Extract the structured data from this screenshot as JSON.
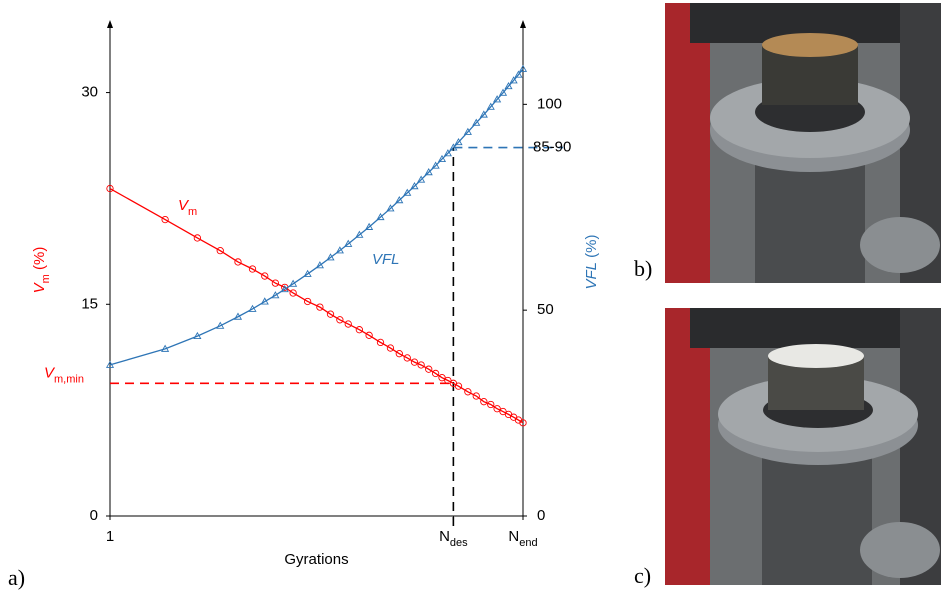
{
  "chart_data": {
    "type": "line",
    "xlabel": "Gyrations",
    "xscale": "log",
    "xlim": [
      1,
      180
    ],
    "xticks": [
      1,
      {
        "value": 75,
        "label": "N",
        "label_sub": "des"
      },
      {
        "value": 180,
        "label": "N",
        "label_sub": "end"
      }
    ],
    "ylim": [
      0,
      35
    ],
    "yticks": [
      0,
      15,
      30
    ],
    "y2lim": [
      0,
      120
    ],
    "y2ticks": [
      0,
      50,
      100
    ],
    "ylabel": {
      "main": "V",
      "sub": "m",
      "unit": " (%)",
      "color": "#ff0000"
    },
    "y2label": {
      "main": "VFL",
      "unit": " (%)",
      "color": "#2e75b6"
    },
    "x": [
      1,
      2,
      3,
      4,
      5,
      6,
      7,
      8,
      9,
      10,
      12,
      14,
      16,
      18,
      20,
      23,
      26,
      30,
      34,
      38,
      42,
      46,
      50,
      55,
      60,
      65,
      70,
      75,
      80,
      90,
      100,
      110,
      120,
      130,
      140,
      150,
      160,
      170,
      180
    ],
    "series": [
      {
        "name": "V",
        "name_sub": "m",
        "color": "#ff0000",
        "marker": "circle",
        "axis": "y",
        "values": [
          23.2,
          21.0,
          19.7,
          18.8,
          18.0,
          17.5,
          17.0,
          16.5,
          16.2,
          15.8,
          15.2,
          14.8,
          14.3,
          13.9,
          13.6,
          13.2,
          12.8,
          12.3,
          11.9,
          11.5,
          11.2,
          10.9,
          10.7,
          10.4,
          10.1,
          9.8,
          9.6,
          9.4,
          9.2,
          8.8,
          8.5,
          8.1,
          7.9,
          7.6,
          7.4,
          7.2,
          7.0,
          6.8,
          6.6
        ]
      },
      {
        "name": "VFL",
        "color": "#2e75b6",
        "marker": "triangle",
        "axis": "y2",
        "values": [
          36.7,
          40.6,
          43.7,
          46.2,
          48.4,
          50.3,
          52.1,
          53.6,
          55.1,
          56.4,
          58.8,
          60.9,
          62.8,
          64.5,
          66.1,
          68.3,
          70.2,
          72.6,
          74.7,
          76.7,
          78.5,
          80.1,
          81.7,
          83.5,
          85.1,
          86.7,
          88.1,
          89.5,
          90.8,
          93.3,
          95.5,
          97.5,
          99.4,
          101.2,
          102.8,
          104.4,
          105.8,
          107.2,
          108.6
        ]
      }
    ],
    "reference_lines": [
      {
        "axis": "y",
        "value": 9.4,
        "label": "V",
        "label_sub": "m,min",
        "color": "#ff0000"
      },
      {
        "axis": "y2",
        "value": 89.5,
        "label": "85-90",
        "color": "#2e75b6"
      }
    ]
  },
  "panel_labels": [
    "a)",
    "b)",
    "c)"
  ]
}
